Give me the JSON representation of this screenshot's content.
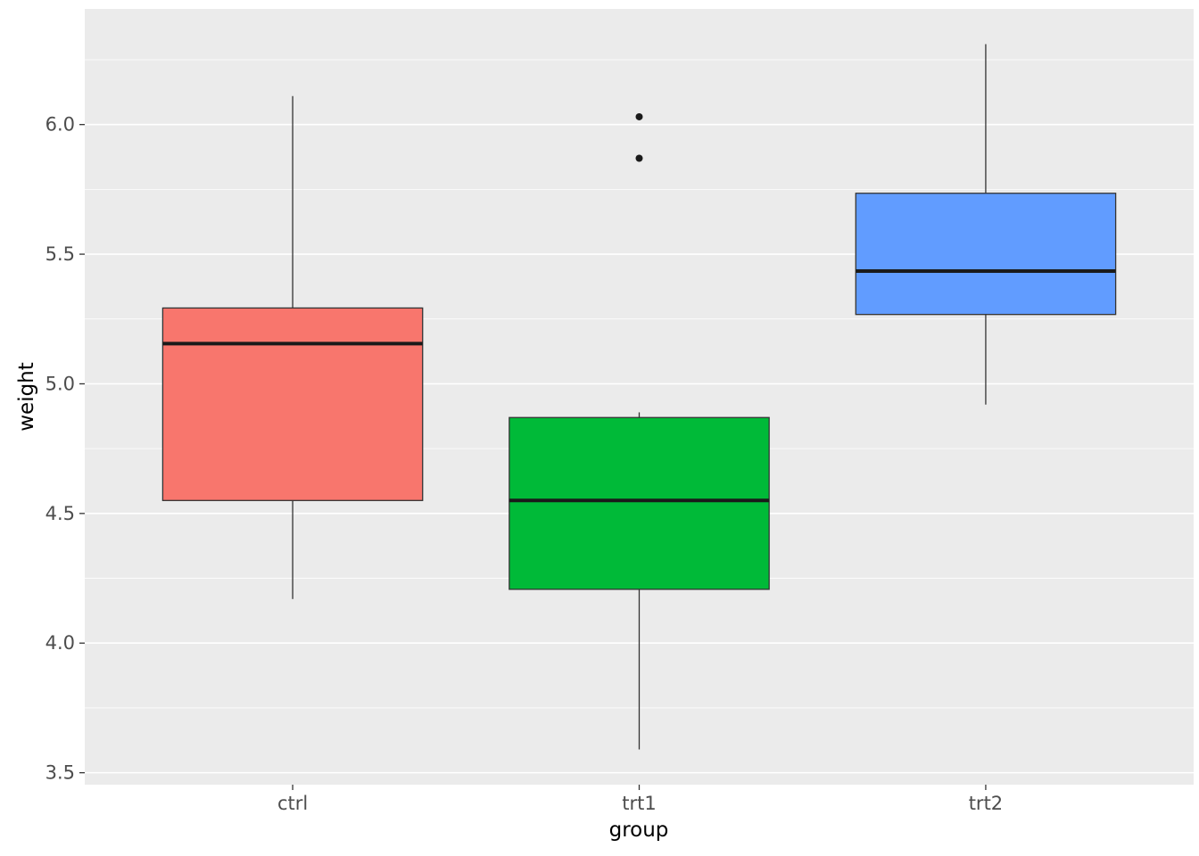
{
  "chart_data": {
    "type": "boxplot",
    "title": "",
    "xlabel": "group",
    "ylabel": "weight",
    "categories": [
      "ctrl",
      "trt1",
      "trt2"
    ],
    "series": [
      {
        "name": "ctrl",
        "color": "#F8766D",
        "whisker_low": 4.17,
        "q1": 4.55,
        "median": 5.155,
        "q3": 5.2925,
        "whisker_high": 6.11,
        "outliers": []
      },
      {
        "name": "trt1",
        "color": "#00BA38",
        "whisker_low": 3.59,
        "q1": 4.2075,
        "median": 4.55,
        "q3": 4.87,
        "whisker_high": 4.89,
        "outliers": [
          5.87,
          6.03
        ]
      },
      {
        "name": "trt2",
        "color": "#619CFF",
        "whisker_low": 4.92,
        "q1": 5.2675,
        "median": 5.435,
        "q3": 5.735,
        "whisker_high": 6.31,
        "outliers": []
      }
    ],
    "ylim": [
      3.454,
      6.446
    ],
    "y_major_ticks": [
      3.5,
      4.0,
      4.5,
      5.0,
      5.5,
      6.0
    ],
    "y_minor_ticks": [
      3.75,
      4.25,
      4.75,
      5.25,
      5.75,
      6.25
    ],
    "grid": "on",
    "legend": "none",
    "panel_bg": "#EBEBEB",
    "grid_color": "#FFFFFF",
    "box_stroke": "#333333",
    "median_color": "#1A1A1A",
    "outlier_color": "#1A1A1A",
    "tick_color": "#333333",
    "tick_label_color": "#4D4D4D",
    "axis_title_color": "#000000"
  }
}
